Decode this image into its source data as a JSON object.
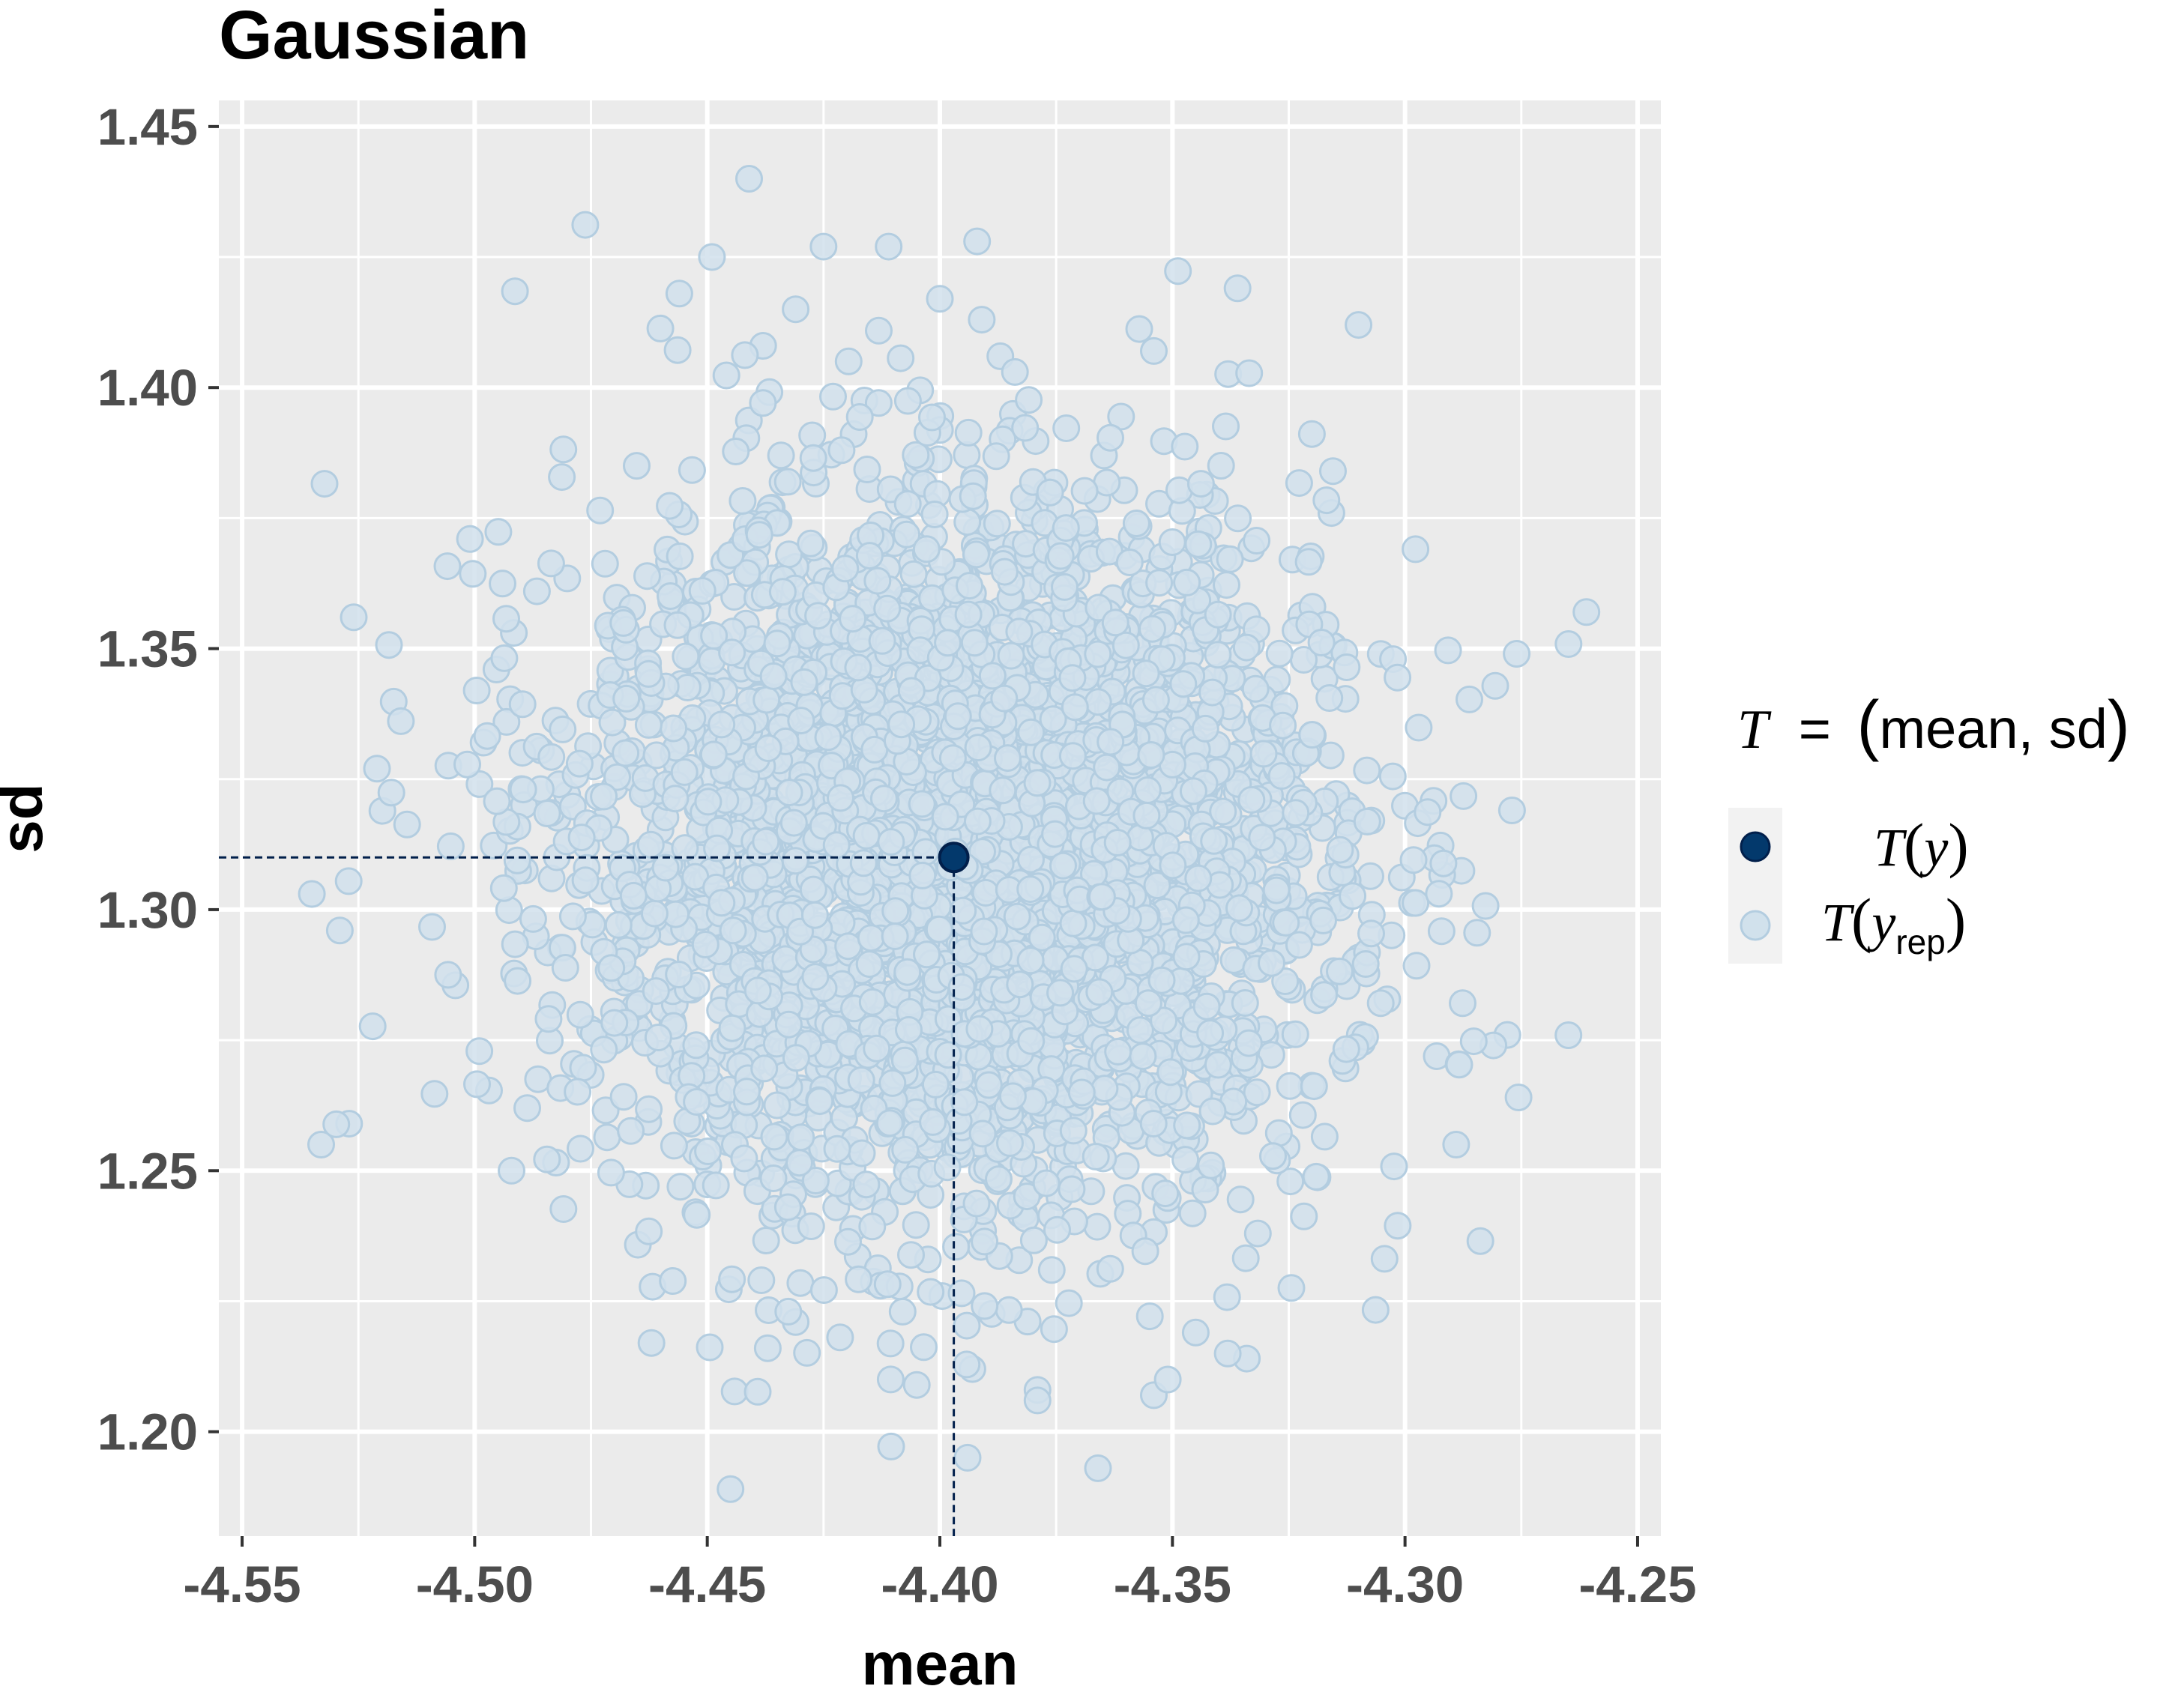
{
  "chart_data": {
    "type": "scatter",
    "title": "Gaussian",
    "xlabel": "mean",
    "ylabel": "sd",
    "xlim": [
      -4.555,
      -4.245
    ],
    "ylim": [
      1.18,
      1.455
    ],
    "x_ticks": [
      "-4.55",
      "-4.50",
      "-4.45",
      "-4.40",
      "-4.35",
      "-4.30",
      "-4.25"
    ],
    "y_ticks": [
      "1.20",
      "1.25",
      "1.30",
      "1.35",
      "1.40",
      "1.45"
    ],
    "grid": true,
    "legend_position": "right",
    "legend": {
      "title_T": "T",
      "title_eq": "=",
      "title_text": "mean, sd",
      "items": [
        {
          "T": "T",
          "arg": "y",
          "sub": "",
          "color": "#03396c"
        },
        {
          "T": "T",
          "arg": "y",
          "sub": "rep",
          "color": "#d1e1ec"
        }
      ]
    },
    "observed": {
      "name": "T(y)",
      "x": -4.397,
      "y": 1.31,
      "color": "#03396c"
    },
    "replicated": {
      "name": "T(y_rep)",
      "color": "#d1e1ec",
      "center_x": -4.397,
      "center_y": 1.31,
      "sd_x": 0.04,
      "sd_y": 0.034,
      "x_range": [
        -4.538,
        -4.262
      ],
      "y_range": [
        1.19,
        1.44
      ],
      "points": [
        [
          -4.441,
          1.44
        ],
        [
          -4.392,
          1.428
        ],
        [
          -4.425,
          1.427
        ],
        [
          -4.411,
          1.427
        ],
        [
          -4.449,
          1.425
        ],
        [
          -4.431,
          1.415
        ],
        [
          -4.391,
          1.413
        ],
        [
          -4.336,
          1.419
        ],
        [
          -4.31,
          1.412
        ],
        [
          -4.456,
          1.418
        ],
        [
          -4.438,
          1.408
        ],
        [
          -4.354,
          1.407
        ],
        [
          -4.387,
          1.406
        ],
        [
          -4.526,
          1.356
        ],
        [
          -4.261,
          1.357
        ],
        [
          -4.535,
          1.303
        ],
        [
          -4.529,
          1.296
        ],
        [
          -4.521,
          1.327
        ],
        [
          -4.276,
          1.349
        ],
        [
          -4.277,
          1.319
        ],
        [
          -4.533,
          1.255
        ],
        [
          -4.527,
          1.259
        ],
        [
          -4.278,
          1.276
        ],
        [
          -4.281,
          1.274
        ],
        [
          -4.289,
          1.255
        ],
        [
          -4.445,
          1.189
        ],
        [
          -4.366,
          1.193
        ],
        [
          -4.379,
          1.208
        ],
        [
          -4.354,
          1.207
        ],
        [
          -4.351,
          1.21
        ],
        [
          -4.393,
          1.212
        ],
        [
          -4.379,
          1.206
        ],
        [
          -4.345,
          1.219
        ],
        [
          -4.334,
          1.214
        ],
        [
          -4.462,
          1.217
        ],
        [
          -4.437,
          1.216
        ],
        [
          -4.408,
          1.223
        ],
        [
          -4.431,
          1.221
        ],
        [
          -4.4,
          1.417
        ],
        [
          -4.501,
          1.371
        ]
      ]
    }
  }
}
